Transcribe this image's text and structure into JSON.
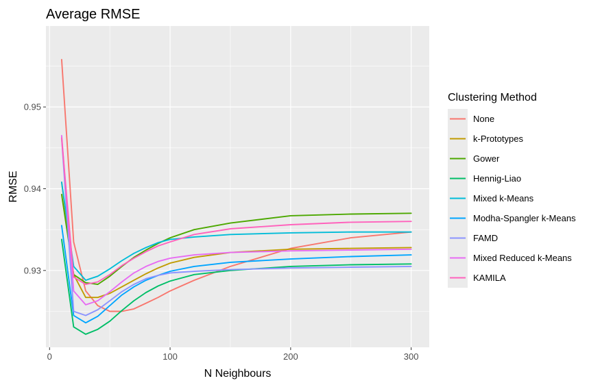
{
  "chart_data": {
    "type": "line",
    "title": "Average RMSE",
    "xlabel": "N Neighbours",
    "ylabel": "RMSE",
    "xlim": [
      -3,
      315
    ],
    "ylim": [
      0.9206,
      0.9599
    ],
    "x_ticks": [
      0,
      100,
      200,
      300
    ],
    "x_tick_labels": [
      "0",
      "100",
      "200",
      "300"
    ],
    "y_ticks": [
      0.93,
      0.94,
      0.95
    ],
    "y_tick_labels": [
      "0.93",
      "0.94",
      "0.95"
    ],
    "grid": true,
    "legend": {
      "title": "Clustering Method",
      "position": "right"
    },
    "series": [
      {
        "name": "None",
        "color": "#F8766D",
        "x": [
          10,
          20,
          30,
          40,
          50,
          60,
          70,
          80,
          90,
          100,
          120,
          150,
          200,
          250,
          300
        ],
        "y": [
          0.9558,
          0.9335,
          0.9275,
          0.9257,
          0.925,
          0.925,
          0.9253,
          0.926,
          0.9267,
          0.9275,
          0.9288,
          0.9305,
          0.9327,
          0.934,
          0.9347
        ]
      },
      {
        "name": "k-Prototypes",
        "color": "#C09B00",
        "x": [
          10,
          20,
          30,
          40,
          50,
          60,
          70,
          80,
          90,
          100,
          120,
          150,
          200,
          250,
          300
        ],
        "y": [
          0.9408,
          0.9295,
          0.9267,
          0.9267,
          0.9272,
          0.928,
          0.9288,
          0.9296,
          0.9303,
          0.9309,
          0.9316,
          0.9322,
          0.9326,
          0.9327,
          0.9328
        ]
      },
      {
        "name": "Gower",
        "color": "#4CA800",
        "x": [
          10,
          20,
          30,
          40,
          50,
          60,
          70,
          80,
          90,
          100,
          120,
          150,
          200,
          250,
          300
        ],
        "y": [
          0.9393,
          0.9295,
          0.9285,
          0.9283,
          0.9293,
          0.9305,
          0.9316,
          0.9325,
          0.9333,
          0.934,
          0.935,
          0.9358,
          0.9367,
          0.9369,
          0.937
        ]
      },
      {
        "name": "Hennig-Liao",
        "color": "#00BE67",
        "x": [
          10,
          20,
          30,
          40,
          50,
          60,
          70,
          80,
          90,
          100,
          120,
          150,
          200,
          250,
          300
        ],
        "y": [
          0.9338,
          0.9231,
          0.9222,
          0.9228,
          0.9238,
          0.9251,
          0.9263,
          0.9273,
          0.9281,
          0.9287,
          0.9295,
          0.93,
          0.9305,
          0.9307,
          0.9308
        ]
      },
      {
        "name": "Mixed k-Means",
        "color": "#00BCD8",
        "x": [
          10,
          20,
          30,
          40,
          50,
          60,
          70,
          80,
          90,
          100,
          120,
          150,
          200,
          250,
          300
        ],
        "y": [
          0.9408,
          0.9305,
          0.9288,
          0.9293,
          0.9302,
          0.9312,
          0.9321,
          0.9328,
          0.9334,
          0.9338,
          0.9341,
          0.9344,
          0.9346,
          0.9347,
          0.9347
        ]
      },
      {
        "name": "Modha-Spangler k-Means",
        "color": "#00A5FF",
        "x": [
          10,
          20,
          30,
          40,
          50,
          60,
          70,
          80,
          90,
          100,
          120,
          150,
          200,
          250,
          300
        ],
        "y": [
          0.9355,
          0.9245,
          0.9236,
          0.9244,
          0.9257,
          0.927,
          0.928,
          0.9288,
          0.9294,
          0.9299,
          0.9305,
          0.931,
          0.9314,
          0.9317,
          0.9319
        ]
      },
      {
        "name": "FAMD",
        "color": "#8B93FF",
        "x": [
          10,
          20,
          30,
          40,
          50,
          60,
          70,
          80,
          90,
          100,
          120,
          150,
          200,
          250,
          300
        ],
        "y": [
          0.9462,
          0.925,
          0.9245,
          0.9252,
          0.9263,
          0.9274,
          0.9283,
          0.929,
          0.9294,
          0.9297,
          0.9299,
          0.9301,
          0.9303,
          0.9304,
          0.9305
        ]
      },
      {
        "name": "Mixed Reduced k-Means",
        "color": "#E76BF3",
        "x": [
          10,
          20,
          30,
          40,
          50,
          60,
          70,
          80,
          90,
          100,
          120,
          150,
          200,
          250,
          300
        ],
        "y": [
          0.9465,
          0.9275,
          0.9258,
          0.9263,
          0.9274,
          0.9286,
          0.9297,
          0.9305,
          0.9311,
          0.9315,
          0.9319,
          0.9322,
          0.9324,
          0.9325,
          0.9326
        ]
      },
      {
        "name": "KAMILA",
        "color": "#FF62BC",
        "x": [
          10,
          20,
          30,
          40,
          50,
          60,
          70,
          80,
          90,
          100,
          120,
          150,
          200,
          250,
          300
        ],
        "y": [
          0.9462,
          0.9292,
          0.9283,
          0.9286,
          0.9295,
          0.9306,
          0.9315,
          0.9323,
          0.933,
          0.9335,
          0.9344,
          0.9351,
          0.9356,
          0.9359,
          0.936
        ]
      }
    ]
  }
}
